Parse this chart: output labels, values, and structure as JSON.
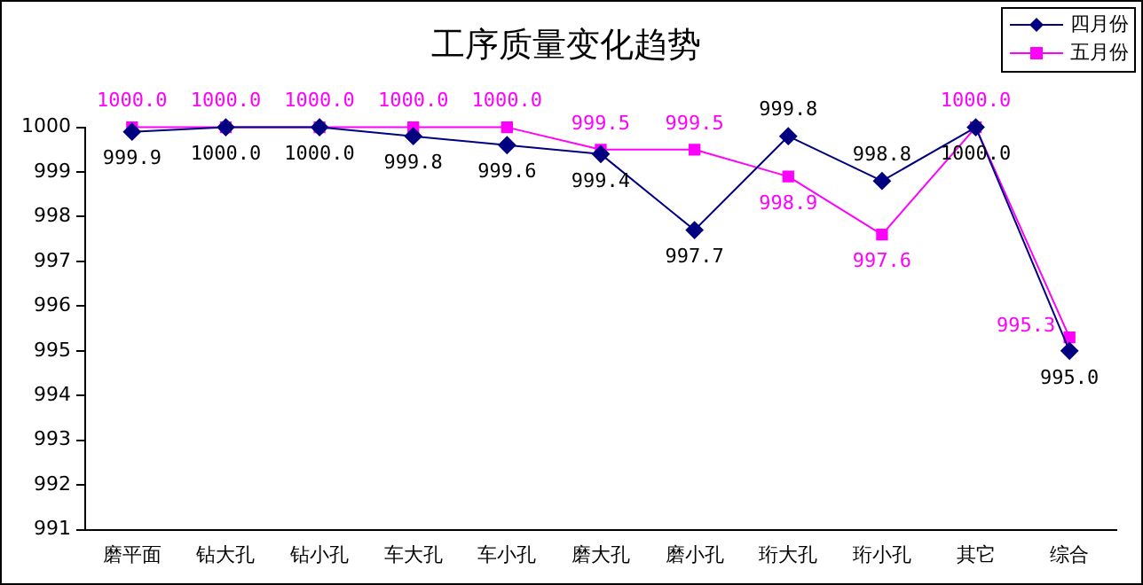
{
  "chart_data": {
    "type": "line",
    "title": "工序质量变化趋势",
    "categories": [
      "磨平面",
      "钻大孔",
      "钻小孔",
      "车大孔",
      "车小孔",
      "磨大孔",
      "磨小孔",
      "珩大孔",
      "珩小孔",
      "其它",
      "综合"
    ],
    "series": [
      {
        "name": "四月份",
        "color": "#000080",
        "marker": "diamond",
        "values": [
          999.9,
          1000.0,
          1000.0,
          999.8,
          999.6,
          999.4,
          997.7,
          999.8,
          998.8,
          1000.0,
          995.0
        ],
        "value_labels": [
          "999.9",
          "1000.0",
          "1000.0",
          "999.8",
          "999.6",
          "999.4",
          "997.7",
          "999.8",
          "998.8",
          "1000.0",
          "995.0"
        ]
      },
      {
        "name": "五月份",
        "color": "#ff00ff",
        "marker": "square",
        "values": [
          1000.0,
          1000.0,
          1000.0,
          1000.0,
          1000.0,
          999.5,
          999.5,
          998.9,
          997.6,
          1000.0,
          995.3
        ],
        "value_labels": [
          "1000.0",
          "1000.0",
          "1000.0",
          "1000.0",
          "1000.0",
          "999.5",
          "999.5",
          "998.9",
          "997.6",
          "1000.0",
          "995.3"
        ]
      }
    ],
    "ylim": [
      991,
      1000
    ],
    "yticks": [
      991,
      992,
      993,
      994,
      995,
      996,
      997,
      998,
      999,
      1000
    ],
    "grid": false,
    "legend": "top right",
    "line_style": "solid"
  }
}
